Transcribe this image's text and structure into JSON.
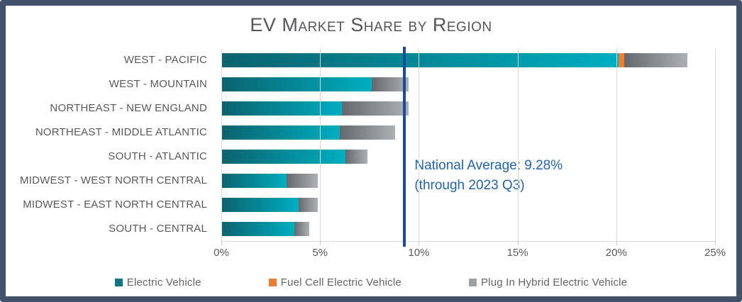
{
  "title": "EV Market Share by Region",
  "colors": {
    "frame_border": "#44516B",
    "ev_gradient_start": "#0B636E",
    "ev_gradient_end": "#00AEC0",
    "fcev": "#ED7D31",
    "phev_gradient_start": "#65686C",
    "phev_gradient_end": "#AEB1B3",
    "reference_line": "#1C4B9E",
    "annotation_text": "#2264AE",
    "axis_text": "#595959"
  },
  "chart_data": {
    "type": "bar",
    "orientation": "horizontal",
    "stacked": true,
    "title": "EV Market Share by Region",
    "categories": [
      "WEST - PACIFIC",
      "WEST - MOUNTAIN",
      "NORTHEAST - NEW ENGLAND",
      "NORTHEAST - MIDDLE ATLANTIC",
      "SOUTH - ATLANTIC",
      "MIDWEST - WEST NORTH CENTRAL",
      "MIDWEST - EAST NORTH CENTRAL",
      "SOUTH - CENTRAL"
    ],
    "series": [
      {
        "name": "Electric Vehicle",
        "key": "ev",
        "values": [
          20.1,
          7.6,
          6.1,
          6.0,
          6.3,
          3.3,
          3.9,
          3.7
        ]
      },
      {
        "name": "Fuel Cell Electric Vehicle",
        "key": "fcev",
        "values": [
          0.3,
          0,
          0,
          0,
          0,
          0,
          0,
          0
        ]
      },
      {
        "name": "Plug In Hybrid Electric Vehicle",
        "key": "phev",
        "values": [
          3.2,
          1.9,
          3.4,
          2.8,
          1.1,
          1.6,
          1.0,
          0.75
        ]
      }
    ],
    "xlim": [
      0,
      25
    ],
    "x_ticks": [
      "0%",
      "5%",
      "10%",
      "15%",
      "20%",
      "25%"
    ],
    "x_tick_values": [
      0,
      5,
      10,
      15,
      20,
      25
    ],
    "grid": true,
    "legend_position": "bottom",
    "legend": [
      {
        "label": "Electric Vehicle",
        "swatch_color": "#0E7680"
      },
      {
        "label": "Fuel Cell Electric Vehicle",
        "swatch_color": "#ED7D31"
      },
      {
        "label": "Plug In Hybrid Electric Vehicle",
        "swatch_color": "#9EA1A4"
      }
    ],
    "reference_line": {
      "value": 9.28,
      "label_line1": "National Average: 9.28%",
      "label_line2": "(through 2023 Q3)"
    }
  }
}
